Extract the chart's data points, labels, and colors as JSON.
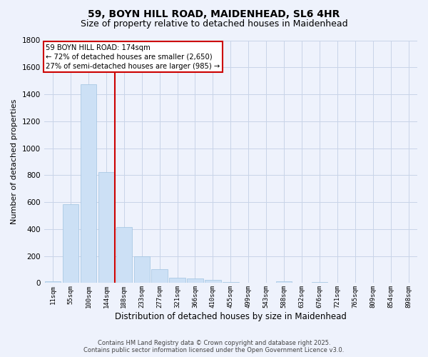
{
  "title1": "59, BOYN HILL ROAD, MAIDENHEAD, SL6 4HR",
  "title2": "Size of property relative to detached houses in Maidenhead",
  "xlabel": "Distribution of detached houses by size in Maidenhead",
  "ylabel": "Number of detached properties",
  "categories": [
    "11sqm",
    "55sqm",
    "100sqm",
    "144sqm",
    "188sqm",
    "233sqm",
    "277sqm",
    "321sqm",
    "366sqm",
    "410sqm",
    "455sqm",
    "499sqm",
    "543sqm",
    "588sqm",
    "632sqm",
    "676sqm",
    "721sqm",
    "765sqm",
    "809sqm",
    "854sqm",
    "898sqm"
  ],
  "values": [
    15,
    585,
    1475,
    825,
    415,
    200,
    105,
    40,
    35,
    25,
    10,
    0,
    0,
    15,
    0,
    10,
    0,
    0,
    0,
    0,
    0
  ],
  "bar_color": "#cce0f5",
  "bar_edge_color": "#a0c4e0",
  "vline_color": "#cc0000",
  "annotation_title": "59 BOYN HILL ROAD: 174sqm",
  "annotation_line1": "← 72% of detached houses are smaller (2,650)",
  "annotation_line2": "27% of semi-detached houses are larger (985) →",
  "annotation_box_color": "#cc0000",
  "ylim": [
    0,
    1800
  ],
  "yticks": [
    0,
    200,
    400,
    600,
    800,
    1000,
    1200,
    1400,
    1600,
    1800
  ],
  "grid_color": "#c8d4e8",
  "bg_color": "#eef2fc",
  "footer1": "Contains HM Land Registry data © Crown copyright and database right 2025.",
  "footer2": "Contains public sector information licensed under the Open Government Licence v3.0.",
  "title_fontsize": 10,
  "subtitle_fontsize": 9
}
